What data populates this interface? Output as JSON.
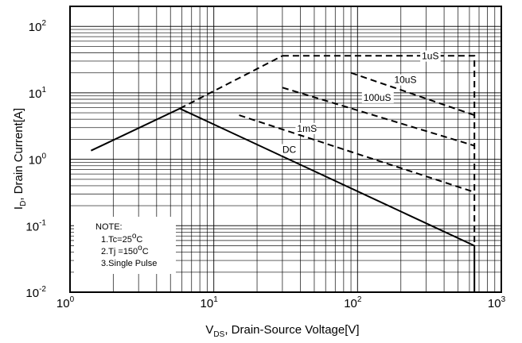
{
  "chart_data": {
    "type": "line",
    "xscale": "log",
    "yscale": "log",
    "xlim": [
      1,
      1000
    ],
    "ylim": [
      0.01,
      200
    ],
    "grid": true,
    "xlabel": {
      "main": "V",
      "sub": "DS",
      "rest": ", Drain-Source Voltage[V]"
    },
    "ylabel": {
      "main": "I",
      "sub": "D",
      "rest": ", Drain Current[A]"
    },
    "xticks": [
      {
        "value": 1,
        "base": "10",
        "exp": "0"
      },
      {
        "value": 10,
        "base": "10",
        "exp": "1"
      },
      {
        "value": 100,
        "base": "10",
        "exp": "2"
      },
      {
        "value": 1000,
        "base": "10",
        "exp": "3"
      }
    ],
    "yticks": [
      {
        "value": 0.01,
        "base": "10",
        "exp": "-2"
      },
      {
        "value": 0.1,
        "base": "10",
        "exp": "-1"
      },
      {
        "value": 1,
        "base": "10",
        "exp": "0"
      },
      {
        "value": 10,
        "base": "10",
        "exp": "1"
      },
      {
        "value": 100,
        "base": "10",
        "exp": "2"
      }
    ],
    "series": [
      {
        "label": "DC",
        "style": "solid",
        "x": [
          1.4,
          5.8,
          650,
          650
        ],
        "y": [
          1.35,
          5.8,
          0.05,
          0.01
        ],
        "label_at": {
          "x": 30,
          "y": 1.25
        }
      },
      {
        "label": "1mS",
        "style": "dashed",
        "x": [
          15,
          650
        ],
        "y": [
          4.6,
          0.32
        ],
        "label_at": {
          "x": 38,
          "y": 2.6
        }
      },
      {
        "label": "100uS",
        "style": "dashed",
        "x": [
          30,
          650
        ],
        "y": [
          12,
          1.6
        ],
        "label_at": {
          "x": 110,
          "y": 7.6
        }
      },
      {
        "label": "10uS",
        "style": "dashed",
        "x": [
          90,
          650
        ],
        "y": [
          20,
          4.6
        ],
        "label_at": {
          "x": 180,
          "y": 14
        }
      },
      {
        "label": "1uS",
        "style": "dashed",
        "x": [
          30,
          650,
          650
        ],
        "y": [
          36,
          36,
          0.05
        ],
        "label_at": {
          "x": 280,
          "y": 32
        }
      },
      {
        "label": "",
        "style": "dashed",
        "x": [
          5.8,
          30
        ],
        "y": [
          5.8,
          36
        ]
      }
    ],
    "note": {
      "title": "NOTE:",
      "items": [
        {
          "pre": "1.Tc=25",
          "sup": "o",
          "post": "C"
        },
        {
          "pre": "2.Tj =150",
          "sup": "o",
          "post": "C"
        },
        {
          "pre": "3.Single Pulse",
          "sup": "",
          "post": ""
        }
      ]
    }
  }
}
